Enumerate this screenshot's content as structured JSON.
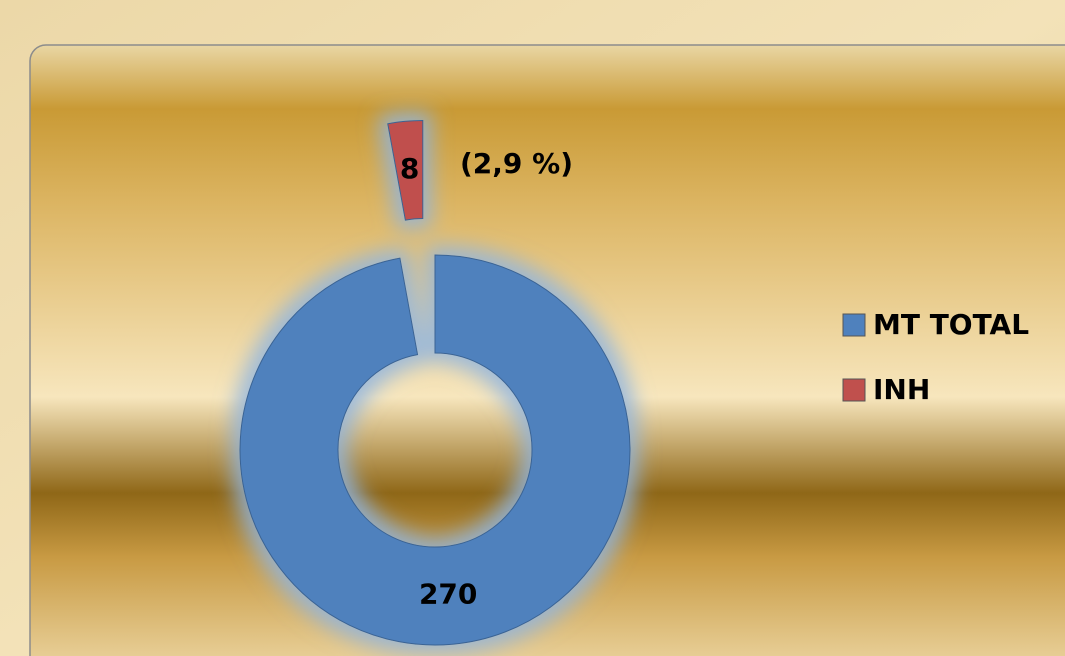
{
  "chart_data": {
    "type": "donut",
    "categories": [
      "MT TOTAL",
      "INH"
    ],
    "values": [
      270,
      8
    ],
    "colors": [
      "#4f81bd",
      "#c0504d"
    ],
    "annotation": "(2,9 %)",
    "legend": "right"
  }
}
